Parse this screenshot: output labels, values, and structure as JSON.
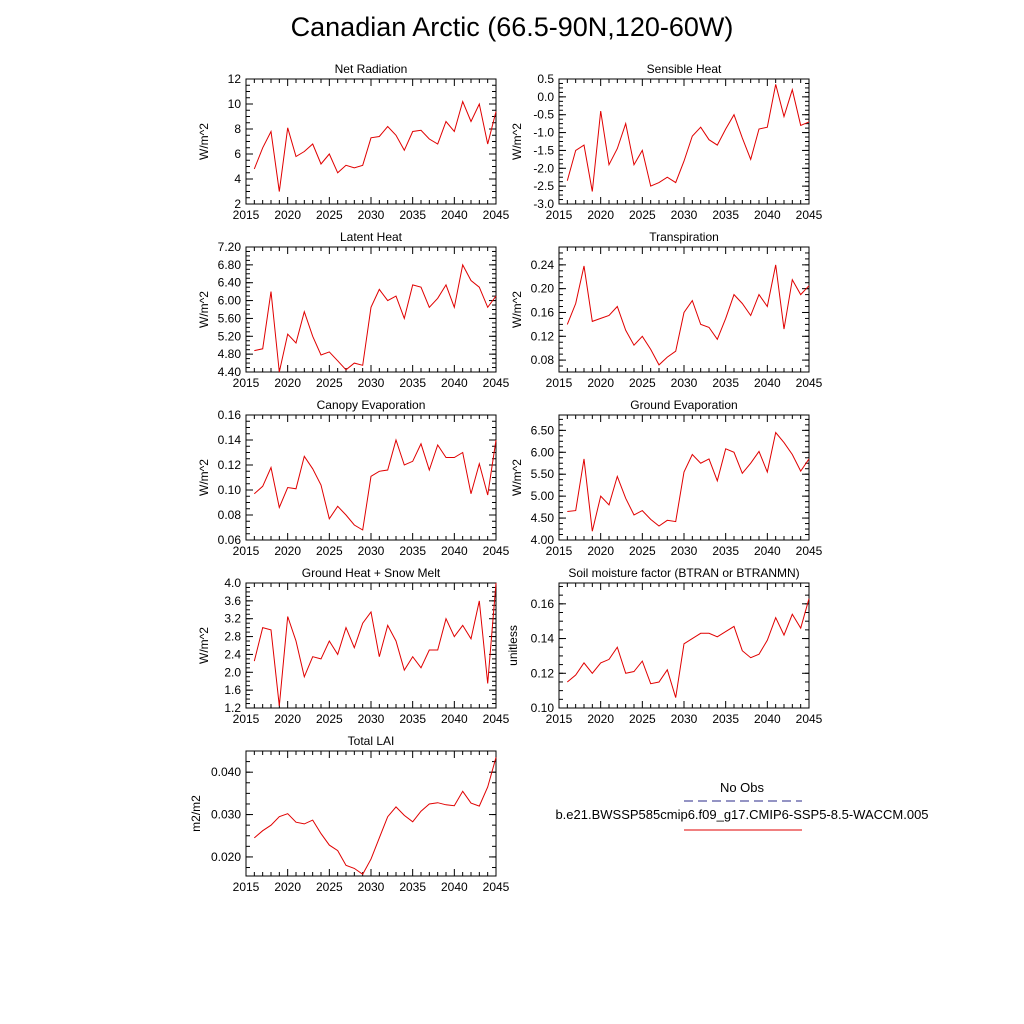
{
  "title": "Canadian Arctic (66.5-90N,120-60W)",
  "legend": {
    "obs_label": "No Obs",
    "obs_color": "#2a2a8a",
    "model_label": "b.e21.BWSSP585cmip6.f09_g17.CMIP6-SSP5-8.5-WACCM.005",
    "model_color": "#e00000"
  },
  "chart_data": [
    {
      "type": "line",
      "title": "Net Radiation",
      "ylabel": "W/m^2",
      "xlim": [
        2015,
        2045
      ],
      "ylim": [
        2,
        12
      ],
      "xticks": [
        "2015",
        "2020",
        "2025",
        "2030",
        "2035",
        "2040",
        "2045"
      ],
      "yticks": [
        "2",
        "4",
        "6",
        "8",
        "10",
        "12"
      ],
      "x": [
        2016,
        2017,
        2018,
        2019,
        2020,
        2021,
        2022,
        2023,
        2024,
        2025,
        2026,
        2027,
        2028,
        2029,
        2030,
        2031,
        2032,
        2033,
        2034,
        2035,
        2036,
        2037,
        2038,
        2039,
        2040,
        2041,
        2042,
        2043,
        2044,
        2045
      ],
      "values": [
        4.8,
        6.5,
        7.8,
        3.0,
        8.1,
        5.8,
        6.2,
        6.8,
        5.2,
        6.0,
        4.5,
        5.1,
        4.9,
        5.1,
        7.3,
        7.4,
        8.2,
        7.5,
        6.3,
        7.8,
        7.9,
        7.2,
        6.8,
        8.6,
        7.8,
        10.2,
        8.6,
        10.0,
        6.8,
        9.4
      ]
    },
    {
      "type": "line",
      "title": "Sensible Heat",
      "ylabel": "W/m^2",
      "xlim": [
        2015,
        2045
      ],
      "ylim": [
        -3.0,
        0.5
      ],
      "xticks": [
        "2015",
        "2020",
        "2025",
        "2030",
        "2035",
        "2040",
        "2045"
      ],
      "yticks": [
        "-3.0",
        "-2.5",
        "-2.0",
        "-1.5",
        "-1.0",
        "-0.5",
        "0.0",
        "0.5"
      ],
      "x": [
        2016,
        2017,
        2018,
        2019,
        2020,
        2021,
        2022,
        2023,
        2024,
        2025,
        2026,
        2027,
        2028,
        2029,
        2030,
        2031,
        2032,
        2033,
        2034,
        2035,
        2036,
        2037,
        2038,
        2039,
        2040,
        2041,
        2042,
        2043,
        2044,
        2045
      ],
      "values": [
        -2.35,
        -1.5,
        -1.35,
        -2.65,
        -0.4,
        -1.9,
        -1.45,
        -0.75,
        -1.9,
        -1.5,
        -2.5,
        -2.4,
        -2.25,
        -2.4,
        -1.8,
        -1.1,
        -0.85,
        -1.2,
        -1.35,
        -0.9,
        -0.5,
        -1.15,
        -1.75,
        -0.9,
        -0.85,
        0.35,
        -0.55,
        0.2,
        -0.8,
        -0.7
      ]
    },
    {
      "type": "line",
      "title": "Latent Heat",
      "ylabel": "W/m^2",
      "xlim": [
        2015,
        2045
      ],
      "ylim": [
        4.4,
        7.2
      ],
      "xticks": [
        "2015",
        "2020",
        "2025",
        "2030",
        "2035",
        "2040",
        "2045"
      ],
      "yticks": [
        "4.40",
        "4.80",
        "5.20",
        "5.60",
        "6.00",
        "6.40",
        "6.80",
        "7.20"
      ],
      "x": [
        2016,
        2017,
        2018,
        2019,
        2020,
        2021,
        2022,
        2023,
        2024,
        2025,
        2026,
        2027,
        2028,
        2029,
        2030,
        2031,
        2032,
        2033,
        2034,
        2035,
        2036,
        2037,
        2038,
        2039,
        2040,
        2041,
        2042,
        2043,
        2044,
        2045
      ],
      "values": [
        4.88,
        4.92,
        6.2,
        4.4,
        5.25,
        5.05,
        5.75,
        5.2,
        4.78,
        4.85,
        4.65,
        4.45,
        4.6,
        4.55,
        5.85,
        6.25,
        6.0,
        6.1,
        5.6,
        6.35,
        6.3,
        5.85,
        6.05,
        6.35,
        5.85,
        6.8,
        6.45,
        6.3,
        5.85,
        6.1
      ]
    },
    {
      "type": "line",
      "title": "Transpiration",
      "ylabel": "W/m^2",
      "xlim": [
        2015,
        2045
      ],
      "ylim": [
        0.06,
        0.27
      ],
      "xticks": [
        "2015",
        "2020",
        "2025",
        "2030",
        "2035",
        "2040",
        "2045"
      ],
      "yticks": [
        "0.08",
        "0.12",
        "0.16",
        "0.20",
        "0.24"
      ],
      "x": [
        2016,
        2017,
        2018,
        2019,
        2020,
        2021,
        2022,
        2023,
        2024,
        2025,
        2026,
        2027,
        2028,
        2029,
        2030,
        2031,
        2032,
        2033,
        2034,
        2035,
        2036,
        2037,
        2038,
        2039,
        2040,
        2041,
        2042,
        2043,
        2044,
        2045
      ],
      "values": [
        0.14,
        0.175,
        0.238,
        0.145,
        0.15,
        0.155,
        0.17,
        0.13,
        0.105,
        0.12,
        0.098,
        0.072,
        0.085,
        0.095,
        0.16,
        0.18,
        0.14,
        0.135,
        0.115,
        0.15,
        0.19,
        0.175,
        0.155,
        0.19,
        0.17,
        0.24,
        0.132,
        0.215,
        0.19,
        0.205
      ]
    },
    {
      "type": "line",
      "title": "Canopy Evaporation",
      "ylabel": "W/m^2",
      "xlim": [
        2015,
        2045
      ],
      "ylim": [
        0.06,
        0.16
      ],
      "xticks": [
        "2015",
        "2020",
        "2025",
        "2030",
        "2035",
        "2040",
        "2045"
      ],
      "yticks": [
        "0.06",
        "0.08",
        "0.10",
        "0.12",
        "0.14",
        "0.16"
      ],
      "x": [
        2016,
        2017,
        2018,
        2019,
        2020,
        2021,
        2022,
        2023,
        2024,
        2025,
        2026,
        2027,
        2028,
        2029,
        2030,
        2031,
        2032,
        2033,
        2034,
        2035,
        2036,
        2037,
        2038,
        2039,
        2040,
        2041,
        2042,
        2043,
        2044,
        2045
      ],
      "values": [
        0.097,
        0.103,
        0.118,
        0.086,
        0.102,
        0.101,
        0.127,
        0.117,
        0.104,
        0.077,
        0.087,
        0.08,
        0.072,
        0.068,
        0.111,
        0.115,
        0.116,
        0.14,
        0.12,
        0.123,
        0.137,
        0.116,
        0.136,
        0.126,
        0.126,
        0.13,
        0.097,
        0.121,
        0.096,
        0.14
      ]
    },
    {
      "type": "line",
      "title": "Ground Evaporation",
      "ylabel": "W/m^2",
      "xlim": [
        2015,
        2045
      ],
      "ylim": [
        4.0,
        6.85
      ],
      "xticks": [
        "2015",
        "2020",
        "2025",
        "2030",
        "2035",
        "2040",
        "2045"
      ],
      "yticks": [
        "4.00",
        "4.50",
        "5.00",
        "5.50",
        "6.00",
        "6.50"
      ],
      "x": [
        2016,
        2017,
        2018,
        2019,
        2020,
        2021,
        2022,
        2023,
        2024,
        2025,
        2026,
        2027,
        2028,
        2029,
        2030,
        2031,
        2032,
        2033,
        2034,
        2035,
        2036,
        2037,
        2038,
        2039,
        2040,
        2041,
        2042,
        2043,
        2044,
        2045
      ],
      "values": [
        4.65,
        4.67,
        5.85,
        4.2,
        5.0,
        4.8,
        5.45,
        4.95,
        4.57,
        4.67,
        4.47,
        4.32,
        4.45,
        4.42,
        5.55,
        5.95,
        5.75,
        5.85,
        5.35,
        6.08,
        6.0,
        5.52,
        5.75,
        6.02,
        5.55,
        6.45,
        6.22,
        5.95,
        5.57,
        5.85
      ]
    },
    {
      "type": "line",
      "title": "Ground Heat + Snow Melt",
      "ylabel": "W/m^2",
      "xlim": [
        2015,
        2045
      ],
      "ylim": [
        1.2,
        4.0
      ],
      "xticks": [
        "2015",
        "2020",
        "2025",
        "2030",
        "2035",
        "2040",
        "2045"
      ],
      "yticks": [
        "1.2",
        "1.6",
        "2.0",
        "2.4",
        "2.8",
        "3.2",
        "3.6",
        "4.0"
      ],
      "x": [
        2016,
        2017,
        2018,
        2019,
        2020,
        2021,
        2022,
        2023,
        2024,
        2025,
        2026,
        2027,
        2028,
        2029,
        2030,
        2031,
        2032,
        2033,
        2034,
        2035,
        2036,
        2037,
        2038,
        2039,
        2040,
        2041,
        2042,
        2043,
        2044,
        2045
      ],
      "values": [
        2.25,
        3.0,
        2.95,
        1.25,
        3.25,
        2.7,
        1.9,
        2.35,
        2.3,
        2.7,
        2.4,
        3.0,
        2.55,
        3.1,
        3.35,
        2.35,
        3.05,
        2.7,
        2.05,
        2.35,
        2.1,
        2.5,
        2.5,
        3.2,
        2.8,
        3.05,
        2.75,
        3.6,
        1.75,
        4.0
      ]
    },
    {
      "type": "line",
      "title": "Soil moisture factor (BTRAN or BTRANMN)",
      "ylabel": "unitless",
      "xlim": [
        2015,
        2045
      ],
      "ylim": [
        0.1,
        0.172
      ],
      "xticks": [
        "2015",
        "2020",
        "2025",
        "2030",
        "2035",
        "2040",
        "2045"
      ],
      "yticks": [
        "0.10",
        "0.12",
        "0.14",
        "0.16"
      ],
      "x": [
        2016,
        2017,
        2018,
        2019,
        2020,
        2021,
        2022,
        2023,
        2024,
        2025,
        2026,
        2027,
        2028,
        2029,
        2030,
        2031,
        2032,
        2033,
        2034,
        2035,
        2036,
        2037,
        2038,
        2039,
        2040,
        2041,
        2042,
        2043,
        2044,
        2045
      ],
      "values": [
        0.115,
        0.119,
        0.126,
        0.12,
        0.126,
        0.128,
        0.135,
        0.12,
        0.121,
        0.127,
        0.114,
        0.115,
        0.122,
        0.106,
        0.137,
        0.14,
        0.143,
        0.143,
        0.141,
        0.144,
        0.147,
        0.133,
        0.129,
        0.131,
        0.139,
        0.152,
        0.142,
        0.154,
        0.146,
        0.163
      ]
    },
    {
      "type": "line",
      "title": "Total LAI",
      "ylabel": "m2/m2",
      "xlim": [
        2015,
        2045
      ],
      "ylim": [
        0.0155,
        0.045
      ],
      "xticks": [
        "2015",
        "2020",
        "2025",
        "2030",
        "2035",
        "2040",
        "2045"
      ],
      "yticks": [
        "0.020",
        "0.030",
        "0.040"
      ],
      "x": [
        2016,
        2017,
        2018,
        2019,
        2020,
        2021,
        2022,
        2023,
        2024,
        2025,
        2026,
        2027,
        2028,
        2029,
        2030,
        2031,
        2032,
        2033,
        2034,
        2035,
        2036,
        2037,
        2038,
        2039,
        2040,
        2041,
        2042,
        2043,
        2044,
        2045
      ],
      "values": [
        0.0245,
        0.0262,
        0.0275,
        0.0295,
        0.0302,
        0.0282,
        0.0278,
        0.0287,
        0.0255,
        0.0228,
        0.0215,
        0.018,
        0.0173,
        0.0159,
        0.0195,
        0.0245,
        0.0295,
        0.0318,
        0.0298,
        0.0283,
        0.0308,
        0.0325,
        0.0328,
        0.0323,
        0.0321,
        0.0355,
        0.0327,
        0.032,
        0.0365,
        0.0435
      ]
    }
  ]
}
